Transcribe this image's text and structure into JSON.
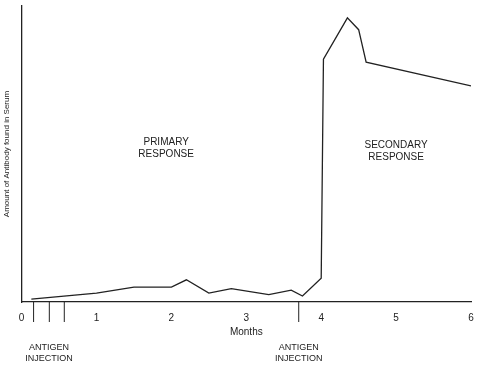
{
  "chart_data": {
    "type": "line",
    "x_label": "Months",
    "y_label": "Amount of Antibody found in Serum",
    "x": [
      0.13,
      1.0,
      1.5,
      2.0,
      2.2,
      2.5,
      2.8,
      3.3,
      3.6,
      3.75,
      4.0,
      4.03,
      4.35,
      4.5,
      4.6,
      6.0
    ],
    "values": [
      1,
      3,
      5,
      5,
      7.5,
      3,
      4.5,
      2.5,
      4,
      2,
      8,
      82,
      96,
      92,
      81,
      73
    ],
    "color": "#222222",
    "marker": "none",
    "line_style": "solid",
    "xlim": [
      0,
      6
    ],
    "xticks": [
      0,
      1,
      2,
      3,
      4,
      5,
      6
    ],
    "ylim": [
      0,
      100
    ],
    "grid": false,
    "tick_labels": "x",
    "annotations": [
      {
        "text": "PRIMARY RESPONSE",
        "x": 1.93,
        "y": 52
      },
      {
        "text": "SECONDARY RESPONSE",
        "x": 5.0,
        "y": 51
      }
    ],
    "injections": [
      {
        "label": "ANTIGEN INJECTION",
        "x": [
          0.16,
          0.37,
          0.57
        ]
      },
      {
        "label": "ANTIGEN INJECTION",
        "x": [
          3.7
        ]
      }
    ]
  }
}
